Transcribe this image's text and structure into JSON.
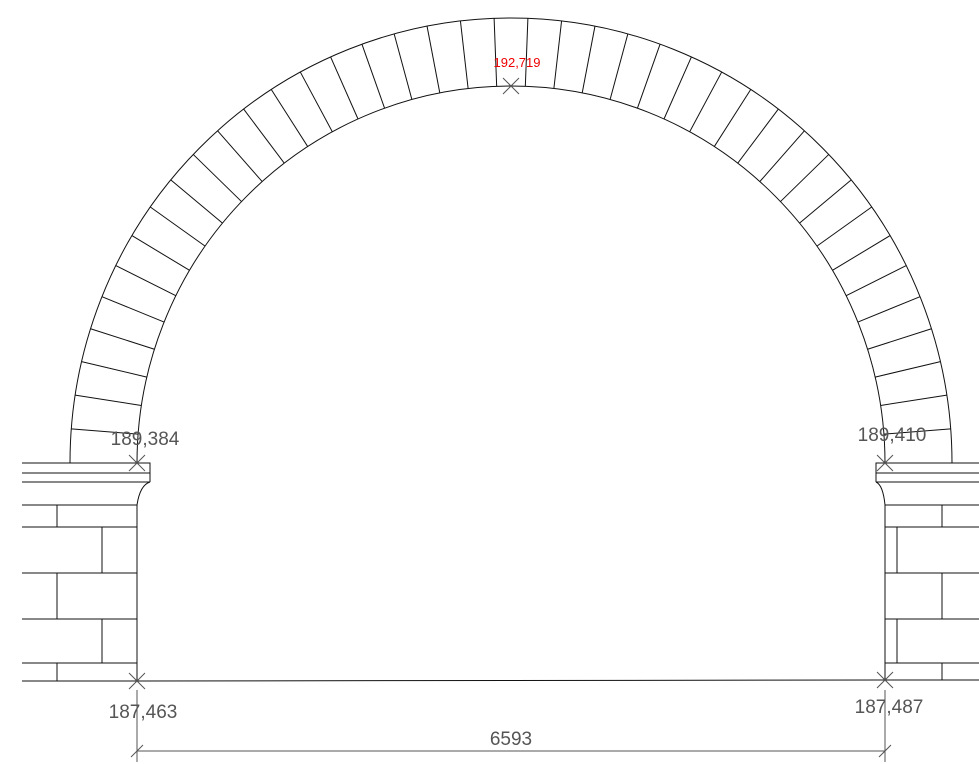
{
  "elevations": {
    "crown": "192,719",
    "left_springing": "189,384",
    "right_springing": "189,410",
    "left_base": "187,463",
    "right_base": "187,487"
  },
  "span": "6593"
}
